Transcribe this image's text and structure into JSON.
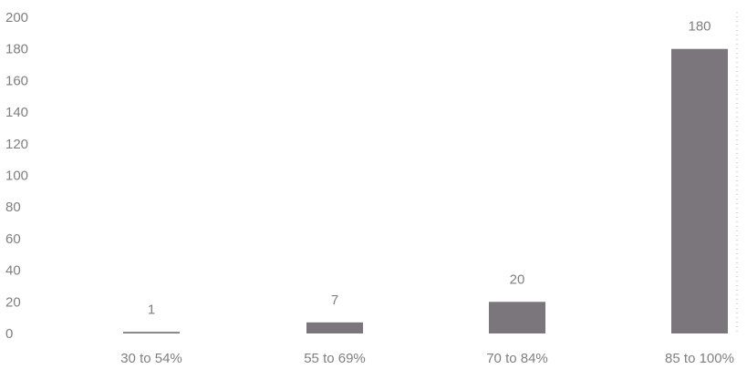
{
  "chart_data": {
    "type": "bar",
    "categories": [
      "30 to 54%",
      "55 to 69%",
      "70 to 84%",
      "85 to 100%"
    ],
    "values": [
      1,
      7,
      20,
      180
    ],
    "data_labels": [
      "1",
      "7",
      "20",
      "180"
    ],
    "ylim": [
      0,
      200
    ],
    "yticks": [
      0,
      20,
      40,
      60,
      80,
      100,
      120,
      140,
      160,
      180,
      200
    ],
    "grid": false,
    "legend": "none",
    "title": "",
    "xlabel": "",
    "ylabel": ""
  },
  "colors": {
    "bar": "#7a767b",
    "text": "#7f7f7f",
    "axis": "#b8b8b8",
    "background": "#ffffff"
  }
}
